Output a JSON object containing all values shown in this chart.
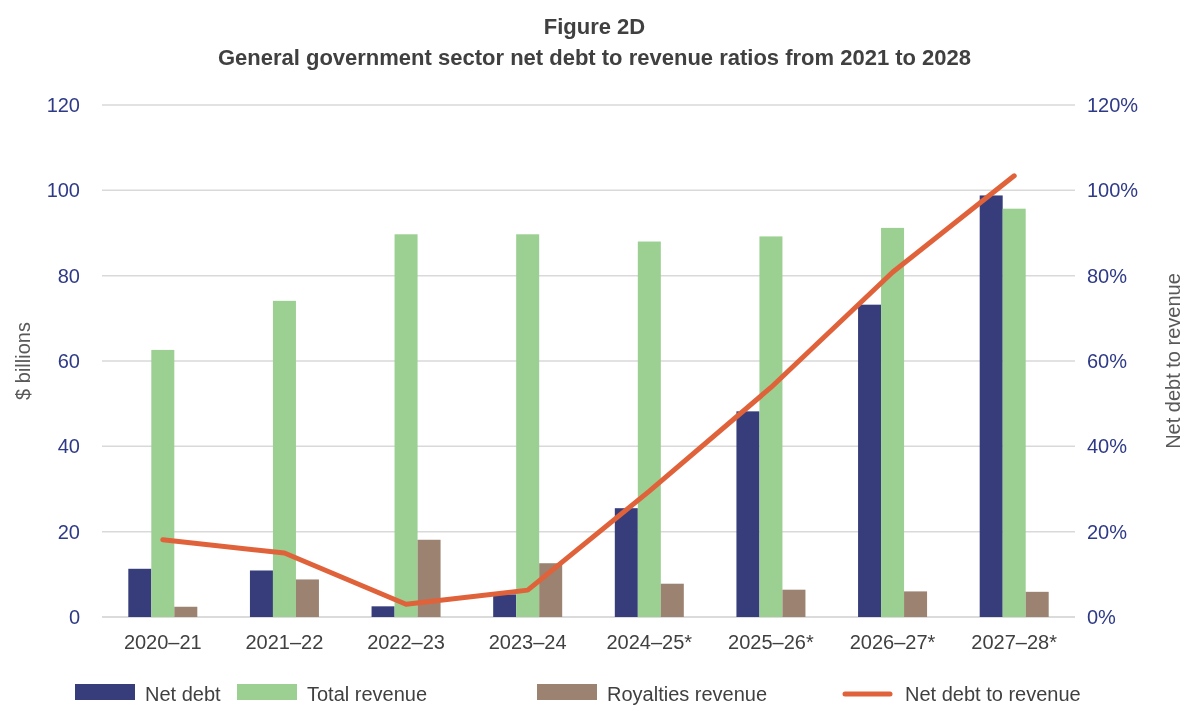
{
  "chart_data": {
    "type": "bar",
    "title": "Figure 2D",
    "subtitle": "General government sector net debt to revenue ratios from 2021 to 2028",
    "ylabel": "$ billions",
    "y2label": "Net debt to revenue",
    "categories": [
      "2020–21",
      "2021–22",
      "2022–23",
      "2023–24",
      "2024–25*",
      "2025–26*",
      "2026–27*",
      "2027–28*"
    ],
    "series": [
      {
        "name": "Net debt",
        "color": "#363d7a",
        "values": [
          11.3,
          10.9,
          2.5,
          5.3,
          25.5,
          48.2,
          73.2,
          98.8
        ]
      },
      {
        "name": "Total revenue",
        "color": "#9bd092",
        "values": [
          62.6,
          74.1,
          89.7,
          89.7,
          88.0,
          89.2,
          91.2,
          95.7
        ]
      },
      {
        "name": "Royalties revenue",
        "color": "#9c8270",
        "values": [
          2.4,
          8.8,
          18.1,
          12.6,
          7.8,
          6.4,
          6.0,
          5.9
        ]
      },
      {
        "name": "Net debt to revenue",
        "type": "line",
        "axis": "y2",
        "color": "#e0623a",
        "values": [
          18.1,
          15.0,
          3.0,
          6.3,
          29.5,
          53.8,
          80.8,
          103.4
        ]
      }
    ],
    "ylim": [
      0,
      120
    ],
    "yticks": [
      0,
      20,
      40,
      60,
      80,
      100,
      120
    ],
    "y2lim": [
      0,
      120
    ],
    "y2ticks": [
      {
        "value": 0,
        "label": "0%"
      },
      {
        "value": 20,
        "label": "20%"
      },
      {
        "value": 40,
        "label": "40%"
      },
      {
        "value": 60,
        "label": "60%"
      },
      {
        "value": 80,
        "label": "80%"
      },
      {
        "value": 100,
        "label": "100%"
      },
      {
        "value": 120,
        "label": "120%"
      }
    ],
    "grid": "y",
    "legend": "bottom",
    "marker": "none",
    "line_style": "solid"
  }
}
